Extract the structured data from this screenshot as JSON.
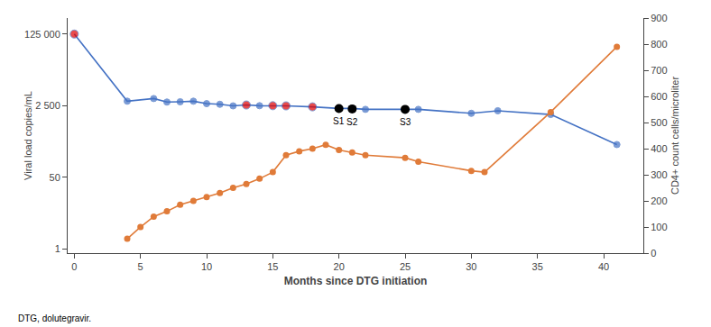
{
  "chart_data": {
    "type": "line",
    "xlabel": "Months since DTG initiation",
    "ylabel": "Viral load copies/mL",
    "y2label": "CD4+ count cells/microliter",
    "footnote": "DTG, dolutegravir.",
    "log": "y",
    "grid": false,
    "xlim": [
      -0.5,
      43
    ],
    "xticks": [
      0,
      5,
      10,
      15,
      20,
      25,
      30,
      35,
      40
    ],
    "ylim": [
      0.8,
      300000
    ],
    "yticks": [
      1,
      50,
      {
        "value": 2500,
        "label": "2 500"
      },
      {
        "value": 125000,
        "label": "125 000"
      }
    ],
    "y2lim": [
      0,
      900
    ],
    "y2ticks": [
      0,
      100,
      200,
      300,
      400,
      500,
      600,
      700,
      800,
      900
    ],
    "series": [
      {
        "type": "line",
        "marker": "circle",
        "color": "#4472C4",
        "x": [
          0,
          4,
          6,
          7,
          8,
          9,
          10,
          11,
          12,
          13,
          14,
          15,
          16,
          18,
          20,
          21,
          22,
          25,
          26,
          30,
          32,
          36,
          41
        ],
        "values": [
          125000,
          3200,
          3700,
          3050,
          3100,
          3200,
          2800,
          2700,
          2480,
          2600,
          2500,
          2500,
          2480,
          2350,
          2150,
          2150,
          2050,
          2050,
          2050,
          1650,
          1900,
          1550,
          300
        ],
        "colors": [
          "#E00000",
          "#4472C4",
          "#4472C4",
          "#4472C4",
          "#4472C4",
          "#4472C4",
          "#4472C4",
          "#4472C4",
          "#4472C4",
          "#E00000",
          "#4472C4",
          "#E00000",
          "#E00000",
          "#E00000",
          "#4472C4",
          "#4472C4",
          "#4472C4",
          "#4472C4",
          "#4472C4",
          "#4472C4",
          "#4472C4",
          "#4472C4",
          "#4472C4"
        ]
      },
      {
        "type": "line",
        "marker": "circle",
        "color": "#E07B39",
        "axis": "y2",
        "x": [
          4,
          5,
          6,
          7,
          8,
          9,
          10,
          11,
          12,
          13,
          14,
          15,
          16,
          17,
          18,
          19,
          20,
          21,
          22,
          25,
          26,
          30,
          31,
          36,
          41
        ],
        "values": [
          55,
          100,
          140,
          160,
          185,
          200,
          215,
          230,
          250,
          265,
          285,
          310,
          375,
          390,
          400,
          415,
          395,
          385,
          375,
          365,
          350,
          315,
          310,
          540,
          790
        ]
      },
      {
        "type": "scatter",
        "marker": "circle",
        "color": "#000000",
        "x": [
          20,
          21,
          25
        ],
        "values": [
          2150,
          2100,
          2050
        ]
      }
    ],
    "annotations": [
      {
        "text": "S1",
        "x": 20,
        "y": 2150
      },
      {
        "text": "S2",
        "x": 21,
        "y": 2100
      },
      {
        "text": "S3",
        "x": 25,
        "y": 2050
      }
    ]
  }
}
